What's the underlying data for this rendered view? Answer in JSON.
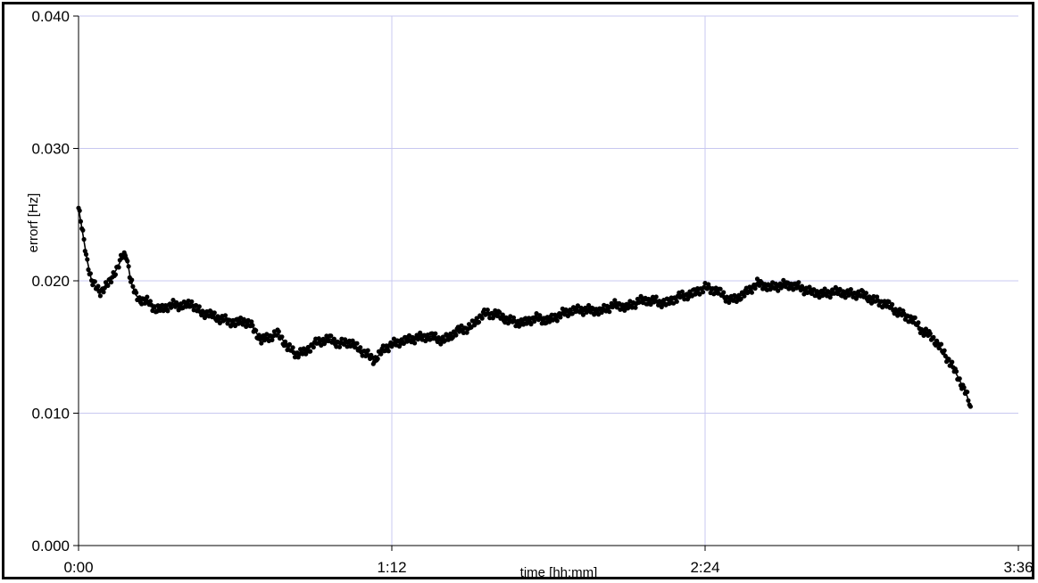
{
  "chart_data": {
    "type": "line",
    "title": "",
    "xlabel": "time [hh:mm]",
    "ylabel": "errorf [Hz]",
    "x_unit": "hh:mm",
    "xlim": [
      "0:00",
      "3:36"
    ],
    "ylim": [
      0.0,
      0.04
    ],
    "x_ticks": [
      "0:00",
      "1:12",
      "2:24",
      "3:36"
    ],
    "y_ticks": [
      "0.000",
      "0.010",
      "0.020",
      "0.030",
      "0.040"
    ],
    "grid": true,
    "legend": "none",
    "marker": "filled-circle",
    "colors": {
      "series": "#000000",
      "grid": "#c8c8f0",
      "axis": "#000000"
    },
    "series": [
      {
        "x": [
          "0:00",
          "0:01",
          "0:02",
          "0:03",
          "0:04",
          "0:05",
          "0:06",
          "0:07",
          "0:08",
          "0:09",
          "0:10",
          "0:11",
          "0:12",
          "0:13",
          "0:14",
          "0:15",
          "0:16",
          "0:18",
          "0:20",
          "0:22",
          "0:24",
          "0:26",
          "0:28",
          "0:30",
          "0:32",
          "0:34",
          "0:36",
          "0:38",
          "0:40",
          "0:42",
          "0:44",
          "0:46",
          "0:48",
          "0:50",
          "0:52",
          "0:54",
          "0:56",
          "0:58",
          "1:00",
          "1:02",
          "1:04",
          "1:06",
          "1:08",
          "1:10",
          "1:12",
          "1:15",
          "1:18",
          "1:21",
          "1:24",
          "1:27",
          "1:30",
          "1:33",
          "1:36",
          "1:39",
          "1:42",
          "1:45",
          "1:48",
          "1:51",
          "1:54",
          "1:57",
          "2:00",
          "2:03",
          "2:06",
          "2:09",
          "2:12",
          "2:15",
          "2:18",
          "2:21",
          "2:24",
          "2:27",
          "2:30",
          "2:33",
          "2:36",
          "2:39",
          "2:42",
          "2:45",
          "2:48",
          "2:51",
          "2:54",
          "2:57",
          "3:00",
          "3:03",
          "3:06",
          "3:09",
          "3:12",
          "3:14",
          "3:16",
          "3:18",
          "3:20",
          "3:22",
          "3:24",
          "3:25"
        ],
        "y": [
          0.0255,
          0.0235,
          0.0215,
          0.02,
          0.0195,
          0.0192,
          0.0195,
          0.0198,
          0.0205,
          0.021,
          0.0218,
          0.022,
          0.02,
          0.019,
          0.0186,
          0.0185,
          0.0184,
          0.0178,
          0.018,
          0.0182,
          0.0181,
          0.0183,
          0.0176,
          0.0175,
          0.0172,
          0.017,
          0.0168,
          0.017,
          0.0165,
          0.0155,
          0.0158,
          0.016,
          0.015,
          0.0145,
          0.0146,
          0.0152,
          0.0155,
          0.0156,
          0.0152,
          0.0154,
          0.015,
          0.0145,
          0.014,
          0.0148,
          0.0152,
          0.0155,
          0.0157,
          0.0158,
          0.0155,
          0.0162,
          0.0165,
          0.0175,
          0.0175,
          0.017,
          0.0168,
          0.0172,
          0.017,
          0.0175,
          0.0178,
          0.0178,
          0.0177,
          0.0182,
          0.018,
          0.0185,
          0.0185,
          0.0183,
          0.0188,
          0.019,
          0.0195,
          0.0192,
          0.0185,
          0.019,
          0.0198,
          0.0195,
          0.0197,
          0.0196,
          0.0192,
          0.019,
          0.0192,
          0.019,
          0.019,
          0.0185,
          0.0182,
          0.0175,
          0.017,
          0.0162,
          0.0158,
          0.015,
          0.014,
          0.0128,
          0.0115,
          0.0105
        ]
      }
    ]
  }
}
